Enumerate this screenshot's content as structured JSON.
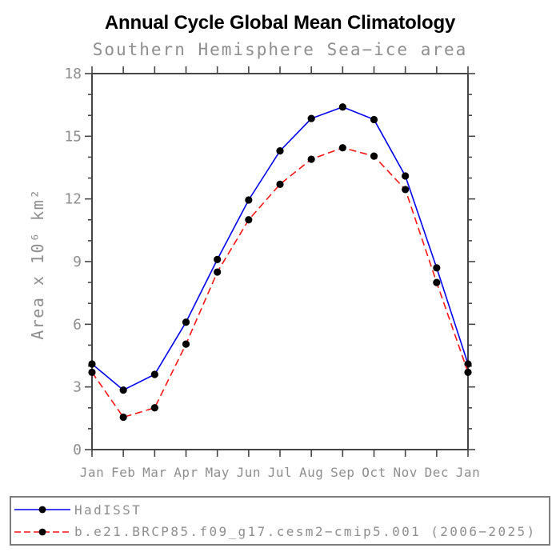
{
  "title": "Annual Cycle Global Mean Climatology",
  "subtitle": "Southern Hemisphere Sea−ice area",
  "colors": {
    "background": "#ffffff",
    "axis": "#454545",
    "gray_text": "#8e8e8e",
    "title_text": "#000000",
    "marker": "#000000",
    "hadisst_line": "#0000ee",
    "model_line": "#fb1414"
  },
  "chart_data": {
    "type": "line",
    "title": "Annual Cycle Global Mean Climatology",
    "subtitle": "Southern Hemisphere Sea−ice area",
    "xlabel": "",
    "ylabel": "Area x 10⁶ km²",
    "ylim": [
      0,
      18
    ],
    "ytick_major_step": 3,
    "ytick_minor_step": 1,
    "ytick_labels": [
      "0",
      "3",
      "6",
      "9",
      "12",
      "15",
      "18"
    ],
    "grid": false,
    "legend_position": "bottom",
    "categories": [
      "Jan",
      "Feb",
      "Mar",
      "Apr",
      "May",
      "Jun",
      "Jul",
      "Aug",
      "Sep",
      "Oct",
      "Nov",
      "Dec",
      "Jan"
    ],
    "series": [
      {
        "name": "HadISST",
        "color": "#0000ee",
        "style": "solid",
        "marker": "filled-circle",
        "marker_color": "#000000",
        "values": [
          4.1,
          2.85,
          3.6,
          6.1,
          9.1,
          11.95,
          14.3,
          15.85,
          16.4,
          15.8,
          13.1,
          8.7,
          4.1
        ]
      },
      {
        "name": "b.e21.BRCP85.f09_g17.cesm2−cmip5.001 (2006−2025)",
        "color": "#fb1414",
        "style": "dashed",
        "marker": "filled-circle",
        "marker_color": "#000000",
        "values": [
          3.7,
          1.55,
          2.0,
          5.05,
          8.5,
          11.0,
          12.7,
          13.9,
          14.45,
          14.05,
          12.45,
          8.0,
          3.7
        ]
      }
    ]
  }
}
